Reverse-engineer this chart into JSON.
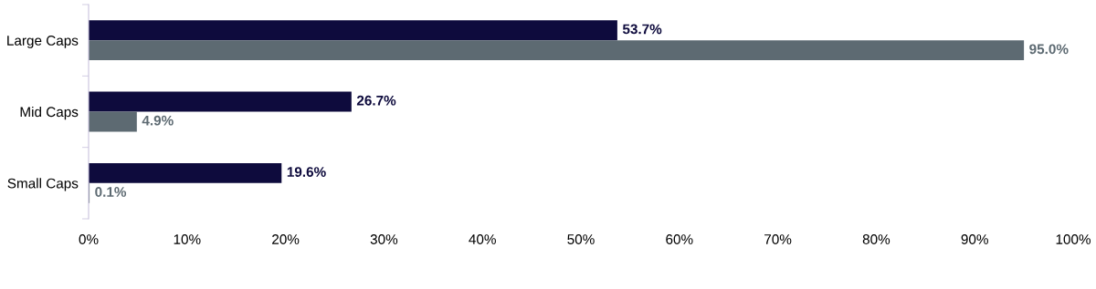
{
  "chart_data": {
    "type": "bar",
    "orientation": "horizontal",
    "categories": [
      "Large Caps",
      "Mid Caps",
      "Small Caps"
    ],
    "series": [
      {
        "color": "#0e0b3d",
        "values": [
          53.7,
          26.7,
          19.6
        ],
        "value_labels": [
          "53.7%",
          "26.7%",
          "19.6%"
        ]
      },
      {
        "color": "#5d6a72",
        "values": [
          95.0,
          4.9,
          0.1
        ],
        "value_labels": [
          "95.0%",
          "4.9%",
          "0.1%"
        ]
      }
    ],
    "xlim": [
      0,
      100
    ],
    "xticks": [
      {
        "value": 0,
        "label": "0%"
      },
      {
        "value": 10,
        "label": "10%"
      },
      {
        "value": 20,
        "label": "20%"
      },
      {
        "value": 30,
        "label": "30%"
      },
      {
        "value": 40,
        "label": "40%"
      },
      {
        "value": 50,
        "label": "50%"
      },
      {
        "value": 60,
        "label": "60%"
      },
      {
        "value": 70,
        "label": "70%"
      },
      {
        "value": 80,
        "label": "80%"
      },
      {
        "value": 90,
        "label": "90%"
      },
      {
        "value": 100,
        "label": "100%"
      }
    ],
    "grid": false,
    "legend": false
  }
}
